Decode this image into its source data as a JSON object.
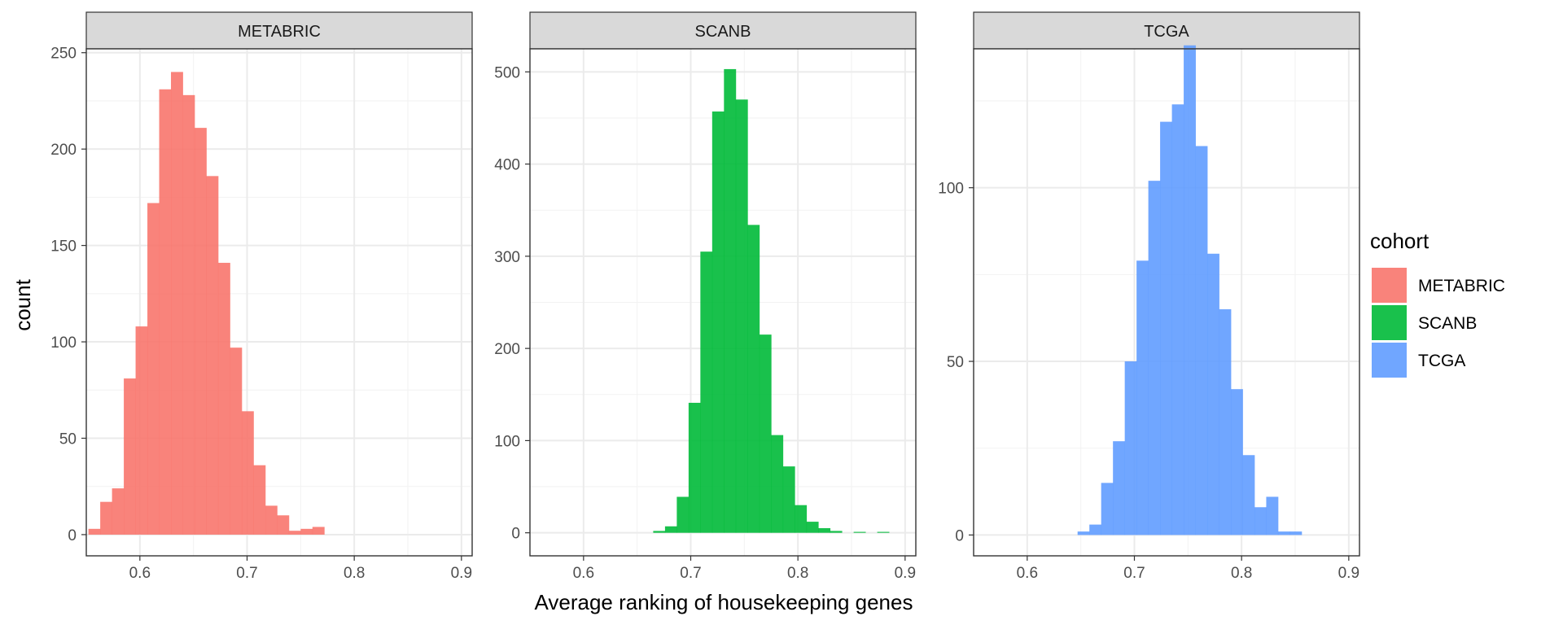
{
  "chart_data": {
    "type": "bar",
    "subtype": "faceted histogram",
    "xlabel": "Average ranking of housekeeping genes",
    "ylabel": "count",
    "grid": true,
    "legend": {
      "title": "cohort",
      "position": "right",
      "entries": [
        {
          "name": "METABRIC",
          "color": "#F8766D"
        },
        {
          "name": "SCANB",
          "color": "#00BA38"
        },
        {
          "name": "TCGA",
          "color": "#619CFF"
        }
      ]
    },
    "x_ticks": [
      "0.6",
      "0.7",
      "0.8",
      "0.9"
    ],
    "xlim": [
      0.55,
      0.91
    ],
    "bin_width": 0.011,
    "panels": [
      {
        "strip": "METABRIC",
        "color": "#F8766D",
        "ylim": [
          -11,
          252
        ],
        "y_ticks": [
          "0",
          "50",
          "100",
          "150",
          "200",
          "250"
        ],
        "bins": [
          {
            "x": 0.5575,
            "count": 3
          },
          {
            "x": 0.5685,
            "count": 17
          },
          {
            "x": 0.5795,
            "count": 24
          },
          {
            "x": 0.5905,
            "count": 81
          },
          {
            "x": 0.6015,
            "count": 108
          },
          {
            "x": 0.6125,
            "count": 172
          },
          {
            "x": 0.6235,
            "count": 231
          },
          {
            "x": 0.6345,
            "count": 240
          },
          {
            "x": 0.6455,
            "count": 228
          },
          {
            "x": 0.6565,
            "count": 211
          },
          {
            "x": 0.6675,
            "count": 186
          },
          {
            "x": 0.6785,
            "count": 141
          },
          {
            "x": 0.6895,
            "count": 97
          },
          {
            "x": 0.7005,
            "count": 64
          },
          {
            "x": 0.7115,
            "count": 36
          },
          {
            "x": 0.7225,
            "count": 15
          },
          {
            "x": 0.7335,
            "count": 10
          },
          {
            "x": 0.7445,
            "count": 2
          },
          {
            "x": 0.7555,
            "count": 3
          },
          {
            "x": 0.7665,
            "count": 4
          }
        ]
      },
      {
        "strip": "SCANB",
        "color": "#00BA38",
        "ylim": [
          -25,
          525
        ],
        "y_ticks": [
          "0",
          "100",
          "200",
          "300",
          "400",
          "500"
        ],
        "bins": [
          {
            "x": 0.6705,
            "count": 2
          },
          {
            "x": 0.6815,
            "count": 7
          },
          {
            "x": 0.6925,
            "count": 39
          },
          {
            "x": 0.7035,
            "count": 141
          },
          {
            "x": 0.7145,
            "count": 305
          },
          {
            "x": 0.7255,
            "count": 457
          },
          {
            "x": 0.7365,
            "count": 503
          },
          {
            "x": 0.7475,
            "count": 470
          },
          {
            "x": 0.7585,
            "count": 334
          },
          {
            "x": 0.7695,
            "count": 215
          },
          {
            "x": 0.7805,
            "count": 106
          },
          {
            "x": 0.7915,
            "count": 72
          },
          {
            "x": 0.8025,
            "count": 30
          },
          {
            "x": 0.8135,
            "count": 12
          },
          {
            "x": 0.8245,
            "count": 5
          },
          {
            "x": 0.8355,
            "count": 2
          },
          {
            "x": 0.8575,
            "count": 1
          },
          {
            "x": 0.8795,
            "count": 1
          }
        ]
      },
      {
        "strip": "TCGA",
        "color": "#619CFF",
        "ylim": [
          -6,
          140
        ],
        "y_ticks": [
          "0",
          "50",
          "100"
        ],
        "bins": [
          {
            "x": 0.6525,
            "count": 1
          },
          {
            "x": 0.6635,
            "count": 3
          },
          {
            "x": 0.6745,
            "count": 15
          },
          {
            "x": 0.6855,
            "count": 27
          },
          {
            "x": 0.6965,
            "count": 50
          },
          {
            "x": 0.7075,
            "count": 79
          },
          {
            "x": 0.7185,
            "count": 102
          },
          {
            "x": 0.7295,
            "count": 119
          },
          {
            "x": 0.7405,
            "count": 124
          },
          {
            "x": 0.7515,
            "count": 141
          },
          {
            "x": 0.7625,
            "count": 112
          },
          {
            "x": 0.7735,
            "count": 81
          },
          {
            "x": 0.7845,
            "count": 65
          },
          {
            "x": 0.7955,
            "count": 42
          },
          {
            "x": 0.8065,
            "count": 23
          },
          {
            "x": 0.8175,
            "count": 8
          },
          {
            "x": 0.8285,
            "count": 11
          },
          {
            "x": 0.8395,
            "count": 1
          },
          {
            "x": 0.8505,
            "count": 1
          }
        ]
      }
    ]
  }
}
